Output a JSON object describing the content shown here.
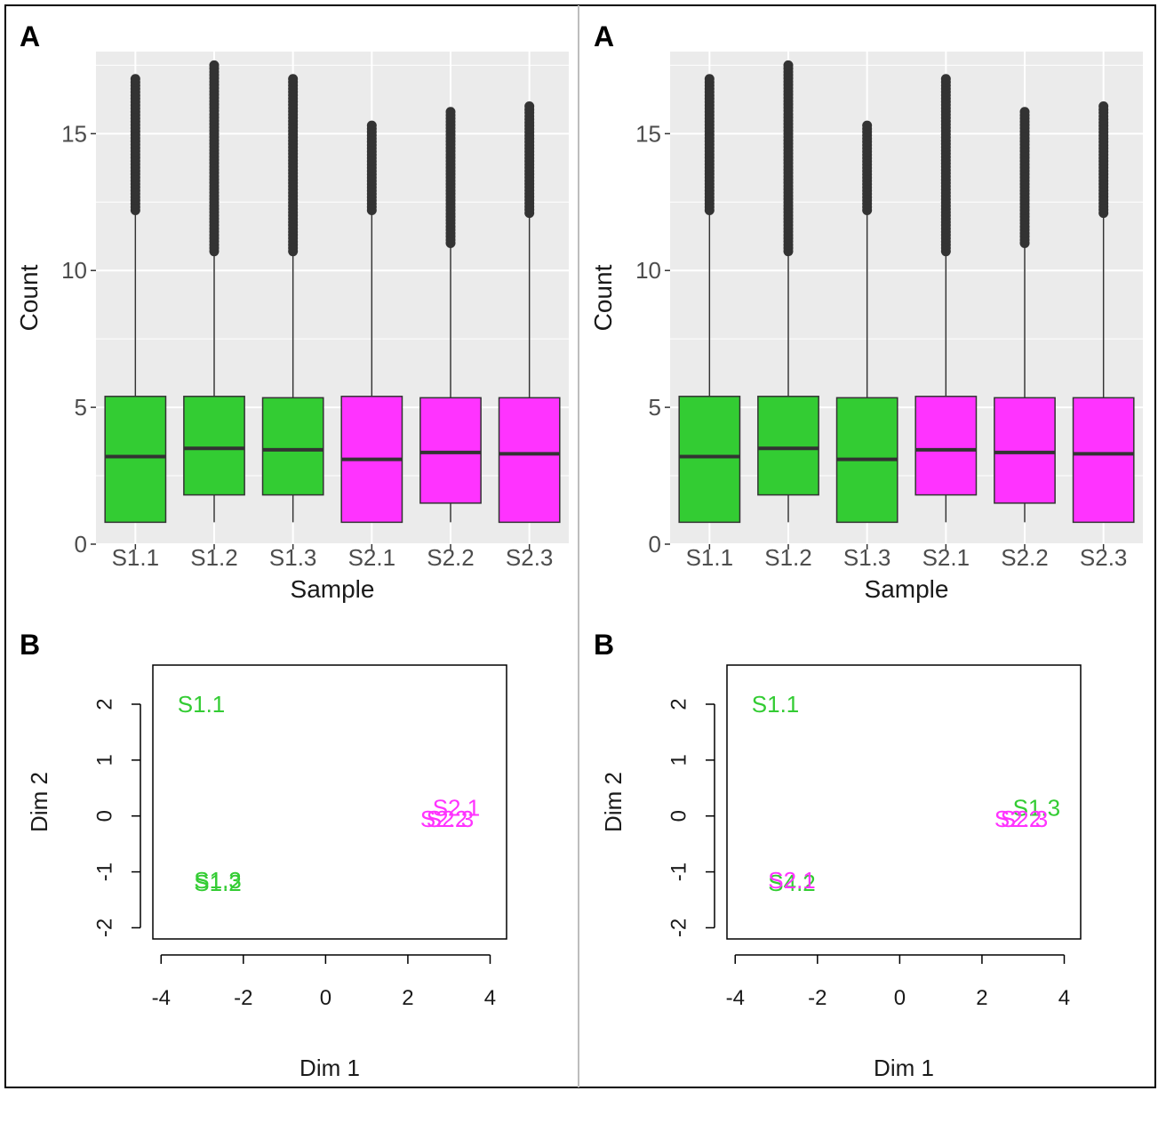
{
  "colors": {
    "group1": "#33cc33",
    "group2": "#ff33ff",
    "panel_bg": "#ebebeb",
    "grid": "#ffffff",
    "outlier": "#333333"
  },
  "panels": [
    {
      "boxplot": {
        "letter": "A",
        "chart_data": {
          "type": "boxplot",
          "xlabel": "Sample",
          "ylabel": "Count",
          "ylim": [
            0,
            18
          ],
          "yticks": [
            0,
            5,
            10,
            15
          ],
          "categories": [
            "S1.1",
            "S1.2",
            "S1.3",
            "S2.1",
            "S2.2",
            "S2.3"
          ],
          "groups": [
            "group1",
            "group1",
            "group1",
            "group2",
            "group2",
            "group2"
          ],
          "stats": [
            {
              "min": 0.8,
              "q1": 0.8,
              "median": 3.2,
              "q3": 5.4,
              "whisker_high": 12.2,
              "outlier_max": 17.0
            },
            {
              "min": 0.8,
              "q1": 1.8,
              "median": 3.5,
              "q3": 5.4,
              "whisker_high": 10.7,
              "outlier_max": 17.5
            },
            {
              "min": 0.8,
              "q1": 1.8,
              "median": 3.45,
              "q3": 5.35,
              "whisker_high": 10.7,
              "outlier_max": 17.0
            },
            {
              "min": 0.8,
              "q1": 0.8,
              "median": 3.1,
              "q3": 5.4,
              "whisker_high": 12.2,
              "outlier_max": 15.3
            },
            {
              "min": 0.8,
              "q1": 1.5,
              "median": 3.35,
              "q3": 5.35,
              "whisker_high": 11.0,
              "outlier_max": 15.8
            },
            {
              "min": 0.8,
              "q1": 0.8,
              "median": 3.3,
              "q3": 5.35,
              "whisker_high": 12.1,
              "outlier_max": 16.0
            }
          ]
        }
      },
      "mds": {
        "letter": "B",
        "chart_data": {
          "type": "scatter",
          "xlabel": "Dim 1",
          "ylabel": "Dim 2",
          "xlim": [
            -4.2,
            4.4
          ],
          "ylim": [
            -2.2,
            2.7
          ],
          "xticks": [
            "-4",
            "-2",
            "0",
            "2",
            "4"
          ],
          "xtick_values": [
            -4,
            -2,
            0,
            2,
            4
          ],
          "yticks": [
            "-2",
            "-1",
            "0",
            "1",
            "2"
          ],
          "ytick_values": [
            -2,
            -1,
            0,
            1,
            2
          ],
          "points": [
            {
              "label": "S1.1",
              "x": -3.6,
              "y": 2.0,
              "group": "group1"
            },
            {
              "label": "S1.2",
              "x": -3.2,
              "y": -1.2,
              "group": "group1"
            },
            {
              "label": "S1.3",
              "x": -3.2,
              "y": -1.15,
              "group": "group1"
            },
            {
              "label": "S2.1",
              "x": 2.6,
              "y": 0.15,
              "group": "group2"
            },
            {
              "label": "S2.2",
              "x": 2.3,
              "y": -0.05,
              "group": "group2"
            },
            {
              "label": "S2.3",
              "x": 2.45,
              "y": -0.05,
              "group": "group2"
            }
          ]
        }
      }
    },
    {
      "boxplot": {
        "letter": "A",
        "chart_data": {
          "type": "boxplot",
          "xlabel": "Sample",
          "ylabel": "Count",
          "ylim": [
            0,
            18
          ],
          "yticks": [
            0,
            5,
            10,
            15
          ],
          "categories": [
            "S1.1",
            "S1.2",
            "S1.3",
            "S2.1",
            "S2.2",
            "S2.3"
          ],
          "groups": [
            "group1",
            "group1",
            "group1",
            "group2",
            "group2",
            "group2"
          ],
          "stats": [
            {
              "min": 0.8,
              "q1": 0.8,
              "median": 3.2,
              "q3": 5.4,
              "whisker_high": 12.2,
              "outlier_max": 17.0
            },
            {
              "min": 0.8,
              "q1": 1.8,
              "median": 3.5,
              "q3": 5.4,
              "whisker_high": 10.7,
              "outlier_max": 17.5
            },
            {
              "min": 0.8,
              "q1": 0.8,
              "median": 3.1,
              "q3": 5.35,
              "whisker_high": 12.2,
              "outlier_max": 15.3
            },
            {
              "min": 0.8,
              "q1": 1.8,
              "median": 3.45,
              "q3": 5.4,
              "whisker_high": 10.7,
              "outlier_max": 17.0
            },
            {
              "min": 0.8,
              "q1": 1.5,
              "median": 3.35,
              "q3": 5.35,
              "whisker_high": 11.0,
              "outlier_max": 15.8
            },
            {
              "min": 0.8,
              "q1": 0.8,
              "median": 3.3,
              "q3": 5.35,
              "whisker_high": 12.1,
              "outlier_max": 16.0
            }
          ]
        }
      },
      "mds": {
        "letter": "B",
        "chart_data": {
          "type": "scatter",
          "xlabel": "Dim 1",
          "ylabel": "Dim 2",
          "xlim": [
            -4.2,
            4.4
          ],
          "ylim": [
            -2.2,
            2.7
          ],
          "xticks": [
            "-4",
            "-2",
            "0",
            "2",
            "4"
          ],
          "xtick_values": [
            -4,
            -2,
            0,
            2,
            4
          ],
          "yticks": [
            "-2",
            "-1",
            "0",
            "1",
            "2"
          ],
          "ytick_values": [
            -2,
            -1,
            0,
            1,
            2
          ],
          "points": [
            {
              "label": "S1.1",
              "x": -3.6,
              "y": 2.0,
              "group": "group1"
            },
            {
              "label": "S4.2",
              "x": -3.2,
              "y": -1.2,
              "group": "group1"
            },
            {
              "label": "S2.1",
              "x": -3.2,
              "y": -1.15,
              "group": "group2"
            },
            {
              "label": "S1.3",
              "x": 2.75,
              "y": 0.15,
              "group": "group1"
            },
            {
              "label": "S2.2",
              "x": 2.3,
              "y": -0.05,
              "group": "group2"
            },
            {
              "label": "S2.3",
              "x": 2.45,
              "y": -0.05,
              "group": "group2"
            }
          ]
        }
      }
    }
  ]
}
